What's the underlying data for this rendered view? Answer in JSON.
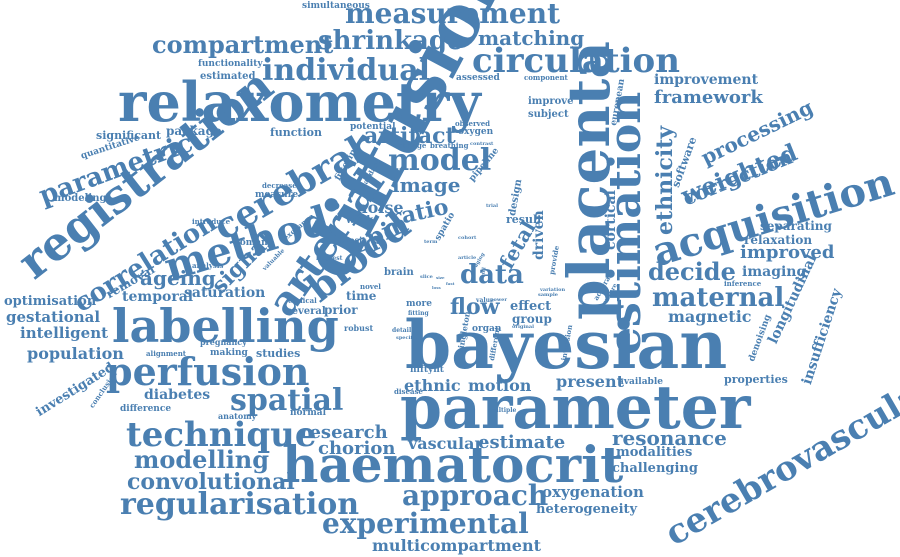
{
  "color": "#4a7fb1",
  "words": [
    "diffusion",
    "bayesian",
    "parameter",
    "relaxometry",
    "placenta",
    "haematocrit",
    "registration",
    "labelling",
    "estimation",
    "acquisition",
    "arterial",
    "method",
    "perfusion",
    "blood",
    "cerebral",
    "technique",
    "regularisation",
    "circulation",
    "cerebrovascular",
    "measurement",
    "individual",
    "model",
    "spatial",
    "experimental",
    "correlation",
    "approach",
    "parametric",
    "compartment",
    "shrinkage",
    "data",
    "maternal",
    "flow",
    "weighted",
    "decide",
    "modelling",
    "spin",
    "convolutional",
    "resonance",
    "estimate",
    "ethnicity",
    "correction",
    "processing",
    "improved",
    "matching",
    "signal",
    "ageing",
    "artifact",
    "image",
    "ratio",
    "fetal",
    "population",
    "research",
    "chorion",
    "vascular",
    "ethnic",
    "motion",
    "present",
    "framework",
    "improvement",
    "gestational",
    "intelligent",
    "magnetic",
    "diabetes",
    "oxygenation",
    "heterogeneity",
    "multicompartment",
    "longitudinal",
    "insufficiency",
    "properties",
    "modalities",
    "challenging",
    "imaging",
    "relaxation",
    "separating",
    "temporal",
    "saturation",
    "investigated",
    "optimisation",
    "removal",
    "effect",
    "group",
    "driven",
    "cortical",
    "noise",
    "package",
    "function",
    "significant",
    "quantitative",
    "modeling",
    "functionality",
    "estimated",
    "simultaneous",
    "assessed",
    "component",
    "improve",
    "subject",
    "european",
    "software",
    "oxygen",
    "observed",
    "potential",
    "filtering",
    "pipeline",
    "breathing",
    "change",
    "contrast",
    "standard",
    "design",
    "spatio",
    "decrease",
    "measure",
    "woman",
    "introduce",
    "exchange",
    "thesis",
    "interest",
    "analysis",
    "pregnancy",
    "valuable",
    "work",
    "result",
    "brain",
    "time",
    "prior",
    "several",
    "clinical",
    "novel",
    "more",
    "fitting",
    "value",
    "power",
    "sample",
    "variation",
    "original",
    "organ",
    "detail",
    "specific",
    "robust",
    "niftyfit",
    "singleton",
    "different",
    "inversion",
    "accurate",
    "structure",
    "available",
    "inference",
    "denoising",
    "difference",
    "conclusion",
    "anatomy",
    "normal",
    "alignment",
    "making",
    "studies",
    "disease",
    "multiple",
    "cohort",
    "article",
    "aging",
    "provide",
    "trend",
    "trial",
    "slice",
    "term",
    "size",
    "fast",
    "loss"
  ]
}
